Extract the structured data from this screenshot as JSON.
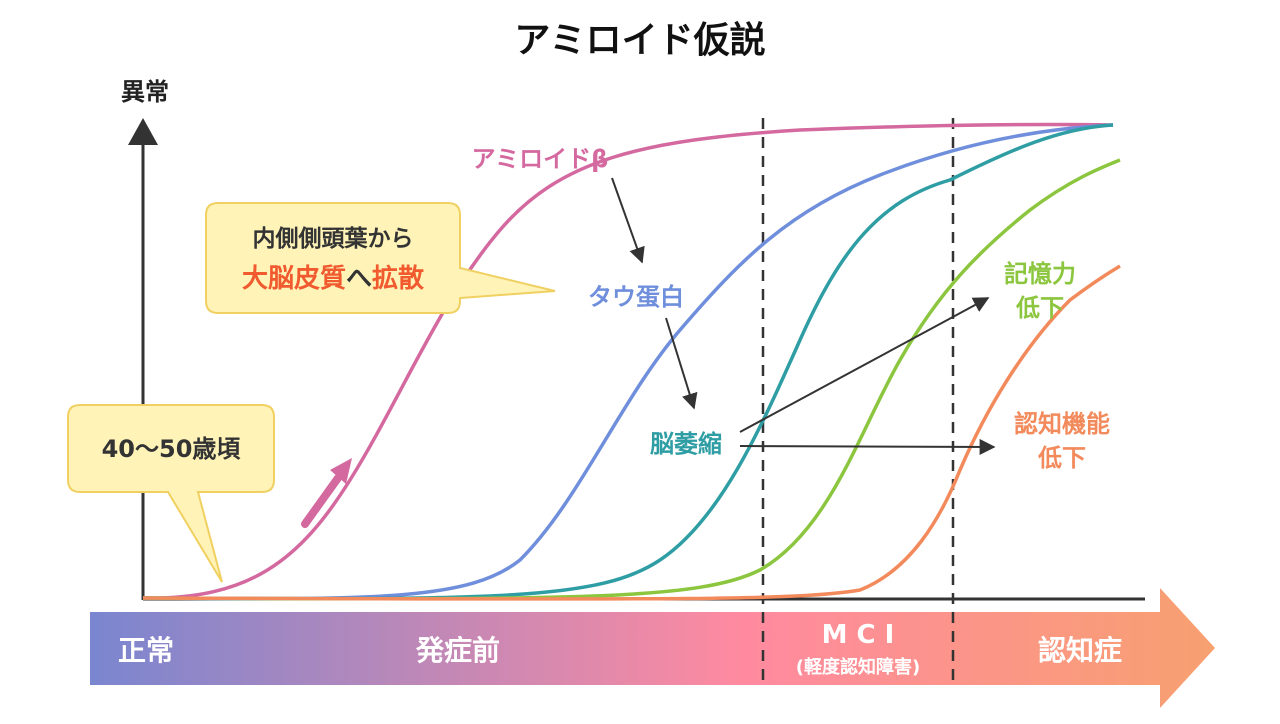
{
  "title": "アミロイド仮説",
  "y_axis_label": "異常",
  "callouts": {
    "spread_line1": "内側側頭葉から",
    "spread_line2_a": "大脳皮質",
    "spread_line2_b": "へ",
    "spread_line2_c": "拡散",
    "age": "40〜50歳頃"
  },
  "curves": {
    "amyloid": {
      "label": "アミロイドβ",
      "color": "#d4699f"
    },
    "tau": {
      "label": "タウ蛋白",
      "color": "#6f8fdc"
    },
    "atrophy": {
      "label": "脳萎縮",
      "color": "#2f9ea4"
    },
    "memory": {
      "label_line1": "記憶力",
      "label_line2": "低下",
      "color": "#8cc63f"
    },
    "cognitive": {
      "label_line1": "認知機能",
      "label_line2": "低下",
      "color": "#f28a5c"
    }
  },
  "stages": {
    "normal": "正常",
    "preclinical": "発症前",
    "mci": "M C I",
    "mci_sub": "(軽度認知障害)",
    "dementia": "認知症"
  },
  "colors": {
    "bar_start": "#7a86d0",
    "bar_mid": "#ff8aa0",
    "bar_end": "#f7a070",
    "callout_fill": "#fff3b8",
    "callout_stroke": "#f0d060",
    "emphasis": "#f05a2e"
  }
}
